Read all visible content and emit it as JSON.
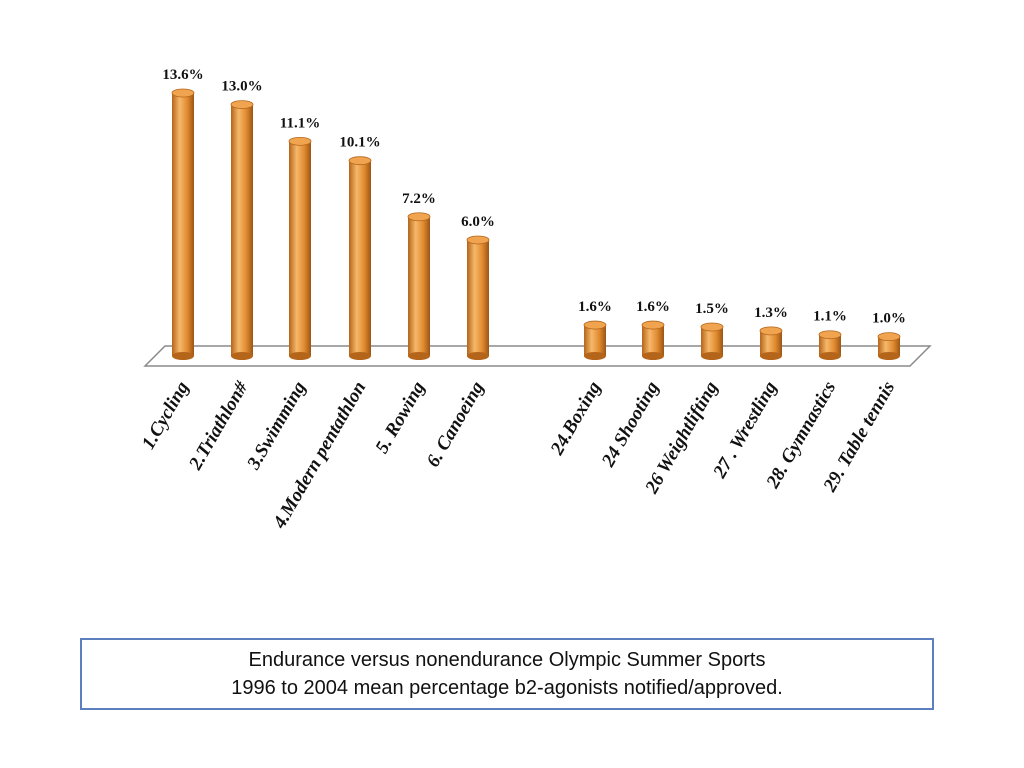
{
  "chart_data": {
    "type": "bar",
    "categories": [
      "1.Cycling",
      "2.Triathlon#",
      "3.Swimming",
      "4.Modern pentathlon",
      "5. Rowing",
      "6. Canoeing",
      "24.Boxing",
      "24 Shooting",
      "26 Weightlifting",
      "27 . Wrestling",
      "28. Gymnastics",
      "29. Table tennis"
    ],
    "values": [
      13.6,
      13.0,
      11.1,
      10.1,
      7.2,
      6.0,
      1.6,
      1.6,
      1.5,
      1.3,
      1.1,
      1.0
    ],
    "value_labels": [
      "13.6%",
      "13.0%",
      "11.1%",
      "10.1%",
      "7.2%",
      "6.0%",
      "1.6%",
      "1.6%",
      "1.5%",
      "1.3%",
      "1.1%",
      "1.0%"
    ],
    "groups": [
      "endurance",
      "endurance",
      "endurance",
      "endurance",
      "endurance",
      "endurance",
      "nonendurance",
      "nonendurance",
      "nonendurance",
      "nonendurance",
      "nonendurance",
      "nonendurance"
    ],
    "ylim": [
      0,
      13.6
    ],
    "grid": false,
    "legend": "none",
    "style": "3d-cylinder",
    "colors": {
      "bar": "#e08a2f",
      "bar_dark": "#b5651a",
      "bar_light": "#f6b86a",
      "bar_top": "#f0a450",
      "floor_stroke": "#888888"
    }
  },
  "caption": {
    "line1": "Endurance versus nonendurance Olympic Summer Sports",
    "line2": "1996 to 2004 mean percentage b2-agonists notified/approved."
  }
}
